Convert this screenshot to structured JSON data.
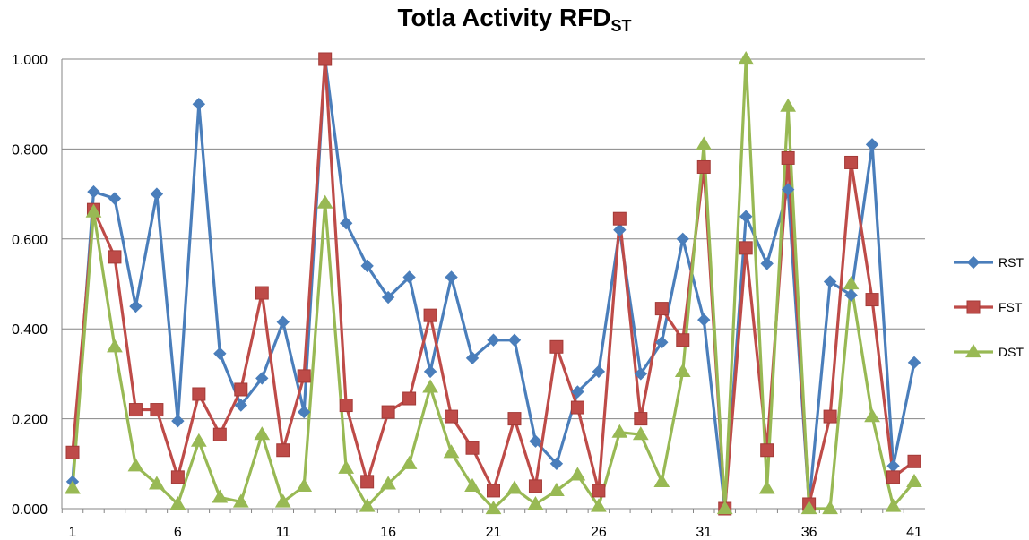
{
  "chart_data": {
    "type": "line",
    "title": "Totla Activity RFD",
    "title_subscript": "ST",
    "xlabel": "",
    "ylabel": "",
    "ylim": [
      0,
      1
    ],
    "y_ticks": [
      "0.000",
      "0.200",
      "0.400",
      "0.600",
      "0.800",
      "1.000"
    ],
    "x_tick_labels": [
      "1",
      "6",
      "11",
      "16",
      "21",
      "26",
      "31",
      "36",
      "41"
    ],
    "x": [
      1,
      2,
      3,
      4,
      5,
      6,
      7,
      8,
      9,
      10,
      11,
      12,
      13,
      14,
      15,
      16,
      17,
      18,
      19,
      20,
      21,
      22,
      23,
      24,
      25,
      26,
      27,
      28,
      29,
      30,
      31,
      32,
      33,
      34,
      35,
      36,
      37,
      38,
      39,
      40,
      41
    ],
    "grid": true,
    "legend_position": "right",
    "series": [
      {
        "name": "RST",
        "color": "#4a7ebb",
        "marker": "diamond",
        "values": [
          0.06,
          0.705,
          0.69,
          0.45,
          0.7,
          0.195,
          0.9,
          0.345,
          0.23,
          0.29,
          0.415,
          0.215,
          1.0,
          0.635,
          0.54,
          0.47,
          0.515,
          0.305,
          0.515,
          0.335,
          0.375,
          0.375,
          0.15,
          0.1,
          0.26,
          0.305,
          0.62,
          0.3,
          0.37,
          0.6,
          0.42,
          0.0,
          0.65,
          0.545,
          0.71,
          0.01,
          0.505,
          0.475,
          0.81,
          0.095,
          0.325
        ]
      },
      {
        "name": "FST",
        "color": "#be4b48",
        "marker": "square",
        "values": [
          0.125,
          0.665,
          0.56,
          0.22,
          0.22,
          0.07,
          0.255,
          0.165,
          0.265,
          0.48,
          0.13,
          0.295,
          1.0,
          0.23,
          0.06,
          0.215,
          0.245,
          0.43,
          0.205,
          0.135,
          0.04,
          0.2,
          0.05,
          0.36,
          0.225,
          0.04,
          0.645,
          0.2,
          0.445,
          0.375,
          0.76,
          0.0,
          0.58,
          0.13,
          0.78,
          0.01,
          0.205,
          0.77,
          0.465,
          0.07,
          0.105
        ]
      },
      {
        "name": "DST",
        "color": "#98b954",
        "marker": "triangle",
        "values": [
          0.045,
          0.66,
          0.36,
          0.095,
          0.055,
          0.01,
          0.15,
          0.025,
          0.015,
          0.165,
          0.015,
          0.05,
          0.68,
          0.09,
          0.005,
          0.055,
          0.1,
          0.27,
          0.125,
          0.05,
          0.0,
          0.045,
          0.01,
          0.04,
          0.075,
          0.005,
          0.17,
          0.165,
          0.06,
          0.305,
          0.81,
          0.0,
          1.0,
          0.045,
          0.895,
          0.0,
          0.0,
          0.5,
          0.205,
          0.005,
          0.06
        ]
      }
    ]
  }
}
